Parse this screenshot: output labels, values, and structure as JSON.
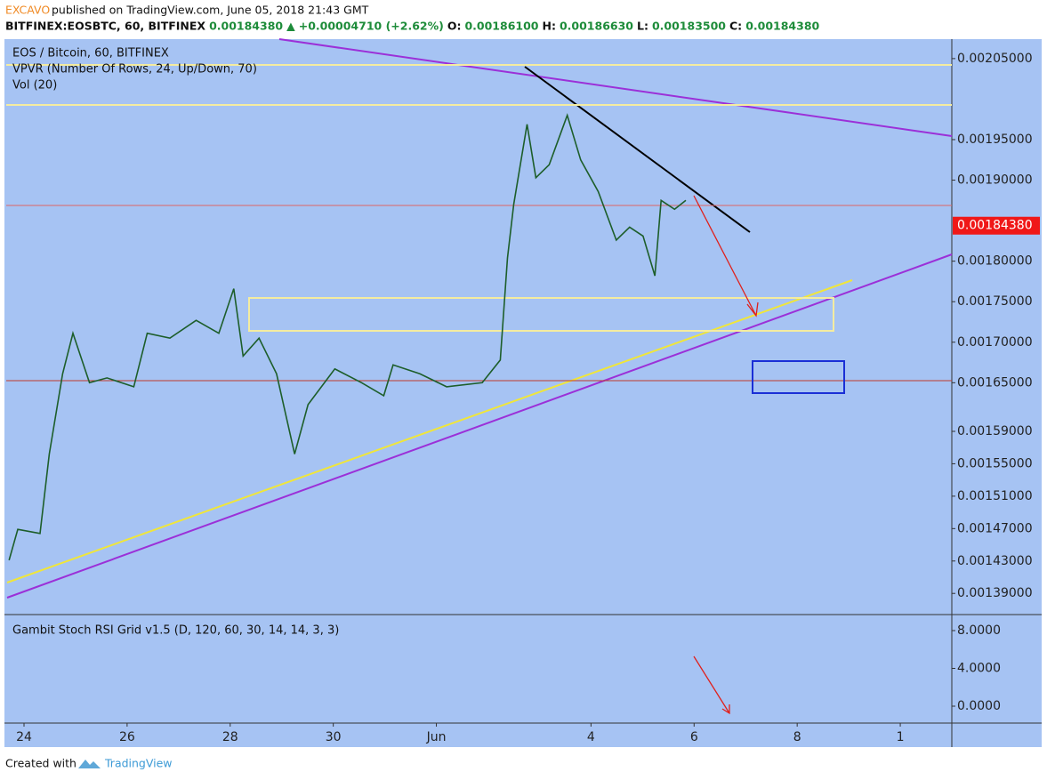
{
  "header": {
    "author": "EXCAVO",
    "published": "published on TradingView.com, June 05, 2018 21:43 GMT",
    "symbol": "BITFINEX:EOSBTC, 60, BITFINEX",
    "last": "0.00184380",
    "arrow": "▲",
    "change": "+0.00004710 (+2.62%)",
    "ohlc": [
      {
        "label": "O:",
        "value": "0.00186100"
      },
      {
        "label": "H:",
        "value": "0.00186630"
      },
      {
        "label": "L:",
        "value": "0.00183500"
      },
      {
        "label": "C:",
        "value": "0.00184380"
      }
    ]
  },
  "chart_data": [
    {
      "type": "line",
      "legend": [
        "EOS / Bitcoin, 60, BITFINEX",
        "VPVR (Number Of Rows, 24, Up/Down, 70)",
        "Vol (20)"
      ],
      "color": "#1d5e2a",
      "x": [
        -0.29,
        -0.12,
        0.31,
        0.49,
        0.75,
        0.95,
        1.27,
        1.61,
        2.13,
        2.39,
        2.83,
        3.34,
        3.78,
        4.07,
        4.25,
        4.56,
        4.9,
        5.25,
        5.51,
        6.03,
        6.55,
        6.98,
        7.16,
        7.68,
        8.2,
        8.89,
        9.24,
        9.38,
        9.5,
        9.76,
        9.93,
        10.19,
        10.54,
        10.8,
        11.14,
        11.49,
        11.75,
        12.01,
        12.24,
        12.36,
        12.62,
        12.84
      ],
      "values": [
        0.001431,
        0.001469,
        0.001464,
        0.001562,
        0.001661,
        0.001711,
        0.00165,
        0.001656,
        0.001645,
        0.001711,
        0.001705,
        0.001727,
        0.001711,
        0.001766,
        0.001683,
        0.001705,
        0.001661,
        0.001562,
        0.001623,
        0.001667,
        0.00165,
        0.001634,
        0.001672,
        0.001661,
        0.001645,
        0.00165,
        0.001678,
        0.001804,
        0.00187,
        0.001969,
        0.001903,
        0.001919,
        0.00198,
        0.001925,
        0.001886,
        0.001826,
        0.001842,
        0.001831,
        0.001782,
        0.001875,
        0.001864,
        0.001875
      ],
      "xlim": [
        -0.345,
        18
      ],
      "ylim": [
        0.001365,
        0.002074
      ],
      "xticks": [
        {
          "value": 0,
          "label": "24"
        },
        {
          "value": 2,
          "label": "26"
        },
        {
          "value": 4,
          "label": "28"
        },
        {
          "value": 6,
          "label": "30"
        },
        {
          "value": 8,
          "label": "Jun"
        },
        {
          "value": 11,
          "label": "4"
        },
        {
          "value": 13,
          "label": "6"
        },
        {
          "value": 15,
          "label": "8"
        },
        {
          "value": 17,
          "label": "1"
        }
      ],
      "yticks": [
        {
          "value": 0.00205,
          "label": "0.00205000"
        },
        {
          "value": 0.00195,
          "label": "0.00195000"
        },
        {
          "value": 0.0019,
          "label": "0.00190000"
        },
        {
          "value": 0.0018,
          "label": "0.00180000"
        },
        {
          "value": 0.00175,
          "label": "0.00175000"
        },
        {
          "value": 0.0017,
          "label": "0.00170000"
        },
        {
          "value": 0.00165,
          "label": "0.00165000"
        },
        {
          "value": 0.00159,
          "label": "0.00159000"
        },
        {
          "value": 0.00155,
          "label": "0.00155000"
        },
        {
          "value": 0.00151,
          "label": "0.00151000"
        },
        {
          "value": 0.00147,
          "label": "0.00147000"
        },
        {
          "value": 0.00143,
          "label": "0.00143000"
        },
        {
          "value": 0.00139,
          "label": "0.00139000"
        }
      ],
      "last_price": {
        "value": 0.0018438,
        "label": "0.00184380"
      }
    },
    {
      "type": "oscillator",
      "title": "Gambit Stoch RSI Grid v1.5 (D, 120, 60, 30, 14, 14, 3, 3)",
      "ylim": [
        -1.694,
        9.6
      ],
      "yticks": [
        {
          "value": 8,
          "label": "8.0000"
        },
        {
          "value": 4,
          "label": "4.0000"
        },
        {
          "value": 0,
          "label": "0.0000"
        }
      ]
    }
  ],
  "footer": {
    "created": "Created with",
    "brand": "TradingView"
  }
}
